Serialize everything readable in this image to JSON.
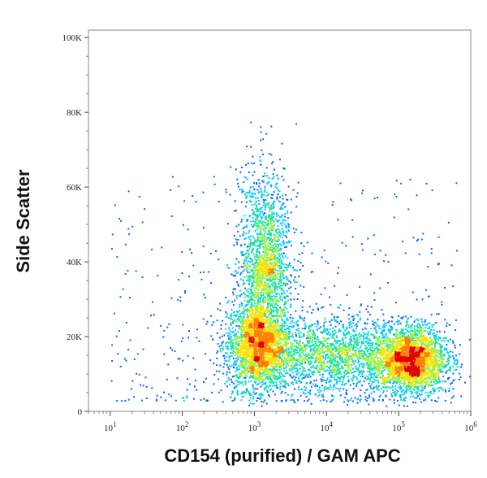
{
  "chart_data": {
    "type": "scatter",
    "title": "",
    "xlabel": "CD154 (purified) / GAM APC",
    "ylabel": "Side Scatter",
    "x_scale": "log",
    "xlim": [
      5,
      1000000
    ],
    "ylim": [
      0,
      102000
    ],
    "x_ticks": [
      {
        "value": 10,
        "base": "10",
        "exp": "1"
      },
      {
        "value": 100,
        "base": "10",
        "exp": "2"
      },
      {
        "value": 1000,
        "base": "10",
        "exp": "3"
      },
      {
        "value": 10000,
        "base": "10",
        "exp": "4"
      },
      {
        "value": 100000,
        "base": "10",
        "exp": "5"
      },
      {
        "value": 1000000,
        "base": "10",
        "exp": "6"
      }
    ],
    "y_ticks": [
      {
        "value": 0,
        "label": "0"
      },
      {
        "value": 20000,
        "label": "20K"
      },
      {
        "value": 40000,
        "label": "40K"
      },
      {
        "value": 60000,
        "label": "60K"
      },
      {
        "value": 80000,
        "label": "80K"
      },
      {
        "value": 100000,
        "label": "100K"
      }
    ],
    "grid": false,
    "density_colormap": [
      "#0000c8",
      "#0064ff",
      "#00c8ff",
      "#20e0a0",
      "#a0f040",
      "#ffe000",
      "#ff8000",
      "#e00000"
    ],
    "populations": [
      {
        "x_center_log10": 3.05,
        "x_sd_log10": 0.22,
        "y_center": 18000,
        "y_sd": 6000,
        "density": "high"
      },
      {
        "x_center_log10": 3.15,
        "x_sd_log10": 0.18,
        "y_center": 40000,
        "y_sd": 12000,
        "density": "medium"
      },
      {
        "x_center_log10": 5.15,
        "x_sd_log10": 0.25,
        "y_center": 14000,
        "y_sd": 4500,
        "density": "highest"
      },
      {
        "x_center_log10": 4.1,
        "x_sd_log10": 0.45,
        "y_center": 15000,
        "y_sd": 5000,
        "density": "medium"
      }
    ]
  }
}
